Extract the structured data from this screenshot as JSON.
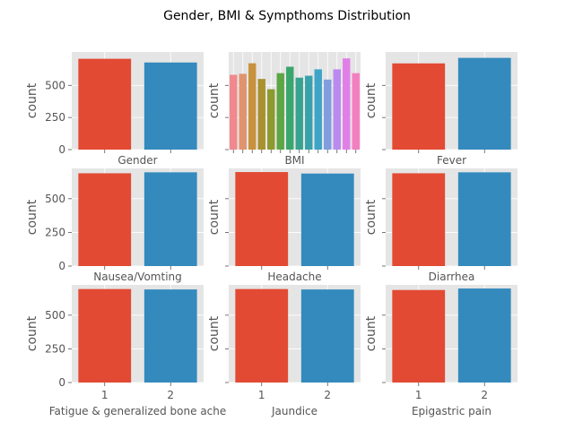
{
  "title": "Gender, BMI & Sympthoms Distribution",
  "chart_data": {
    "type": "bar",
    "grid": true,
    "shared_y": "per-row",
    "ylabel": "count",
    "yticks": [
      0,
      250,
      500
    ],
    "palette": {
      "two_bar": [
        "#e24a33",
        "#348abd"
      ],
      "bmi": [
        "#f0888d",
        "#e0936f",
        "#c7913e",
        "#a8912f",
        "#8d9a2e",
        "#5ca644",
        "#3aa66d",
        "#37a28f",
        "#38a2ab",
        "#3ea4c8",
        "#7f9ddf",
        "#bb8af0",
        "#e17fe8",
        "#f37fc0"
      ]
    },
    "panels": [
      {
        "xlabel": "Gender",
        "categories": [
          "1",
          "2"
        ],
        "values": [
          707,
          678
        ],
        "ylim": [
          0,
          760
        ]
      },
      {
        "xlabel": "BMI",
        "categories": [
          "",
          "",
          "",
          "",
          "",
          "",
          "",
          "",
          "",
          "",
          "",
          "",
          "",
          ""
        ],
        "values": [
          582,
          590,
          672,
          550,
          470,
          595,
          645,
          560,
          575,
          625,
          545,
          625,
          710,
          595
        ],
        "ylim": [
          0,
          760
        ]
      },
      {
        "xlabel": "Fever",
        "categories": [
          "1",
          "2"
        ],
        "values": [
          671,
          714
        ],
        "ylim": [
          0,
          760
        ]
      },
      {
        "xlabel": "Nausea/Vomting",
        "categories": [
          "1",
          "2"
        ],
        "values": [
          689,
          696
        ],
        "ylim": [
          0,
          725
        ]
      },
      {
        "xlabel": "Headache",
        "categories": [
          "1",
          "2"
        ],
        "values": [
          698,
          687
        ],
        "ylim": [
          0,
          725
        ]
      },
      {
        "xlabel": "Diarrhea",
        "categories": [
          "1",
          "2"
        ],
        "values": [
          689,
          696
        ],
        "ylim": [
          0,
          725
        ]
      },
      {
        "xlabel": "Fatigue & generalized bone ache",
        "categories": [
          "1",
          "2"
        ],
        "values": [
          694,
          691
        ],
        "ylim": [
          0,
          725
        ]
      },
      {
        "xlabel": "Jaundice",
        "categories": [
          "1",
          "2"
        ],
        "values": [
          694,
          691
        ],
        "ylim": [
          0,
          725
        ]
      },
      {
        "xlabel": "Epigastric pain",
        "categories": [
          "1",
          "2"
        ],
        "values": [
          687,
          698
        ],
        "ylim": [
          0,
          725
        ]
      }
    ]
  }
}
